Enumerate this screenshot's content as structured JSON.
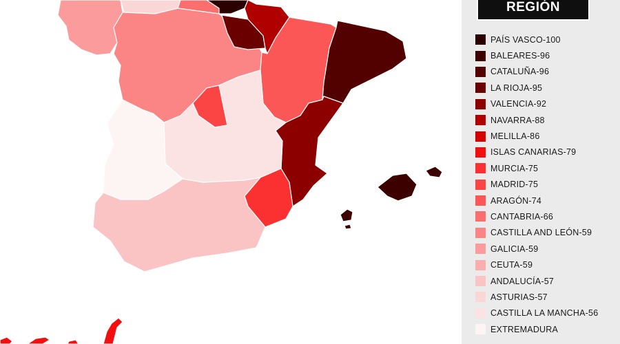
{
  "legend": {
    "title": "REGIÓN",
    "items": [
      {
        "label": "PAÍS VASCO-100",
        "color": "#2b0000"
      },
      {
        "label": "BALEARES-96",
        "color": "#3d0000"
      },
      {
        "label": "CATALUÑA-96",
        "color": "#520000"
      },
      {
        "label": "LA RIOJA-95",
        "color": "#6a0000"
      },
      {
        "label": "VALENCIA-92",
        "color": "#8d0000"
      },
      {
        "label": "NAVARRA-88",
        "color": "#b00000"
      },
      {
        "label": "MELILLA-86",
        "color": "#d50000"
      },
      {
        "label": "ISLAS CANARIAS-79",
        "color": "#f20f0f"
      },
      {
        "label": "MURCIA-75",
        "color": "#fb3030"
      },
      {
        "label": "MADRID-75",
        "color": "#fb4545"
      },
      {
        "label": "ARAGÓN-74",
        "color": "#fb5757"
      },
      {
        "label": "CANTABRIA-66",
        "color": "#fb6e6e"
      },
      {
        "label": "CASTILLA AND LEÓN-59",
        "color": "#fb8585"
      },
      {
        "label": "GALICIA-59",
        "color": "#fb9b9b"
      },
      {
        "label": "CEUTA-59",
        "color": "#fbaeae"
      },
      {
        "label": "ANDALUCÍA-57",
        "color": "#fac4c4"
      },
      {
        "label": "ASTURIAS-57",
        "color": "#fad6d6"
      },
      {
        "label": "CASTILLA LA MANCHA-56",
        "color": "#fbe3e3"
      },
      {
        "label": "EXTREMADURA",
        "color": "#fdf5f3"
      }
    ]
  },
  "map_regions": {
    "pais_vasco": "#2b0000",
    "baleares": "#3d0000",
    "cataluna": "#520000",
    "la_rioja": "#6a0000",
    "valencia": "#8d0000",
    "navarra": "#b00000",
    "melilla": "#d50000",
    "canarias": "#f20f0f",
    "murcia": "#fb3030",
    "madrid": "#fb4545",
    "aragon": "#fb5757",
    "cantabria": "#fb6e6e",
    "castilla_leon": "#fb8585",
    "galicia": "#fb9b9b",
    "andalucia": "#fac4c4",
    "asturias": "#fad6d6",
    "castilla_mancha": "#fbe3e3",
    "extremadura": "#fdf5f3"
  }
}
